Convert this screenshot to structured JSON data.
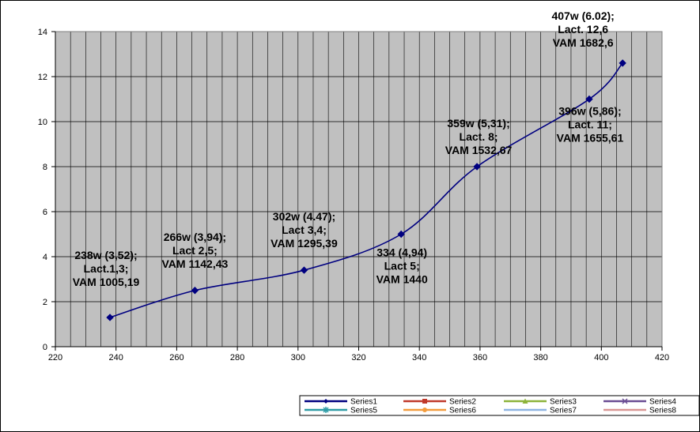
{
  "chart_data": {
    "type": "line",
    "title": "",
    "xlabel": "",
    "ylabel": "",
    "xlim": [
      220,
      420
    ],
    "ylim": [
      0,
      14
    ],
    "x_ticks": [
      "220",
      "240",
      "260",
      "280",
      "300",
      "320",
      "340",
      "360",
      "380",
      "400",
      "420"
    ],
    "y_ticks": [
      "0",
      "2",
      "4",
      "6",
      "8",
      "10",
      "12",
      "14"
    ],
    "grid": true,
    "smooth": true,
    "plot_background": "#c0c0c0",
    "series": [
      {
        "name": "Series1",
        "color": "#000080",
        "marker": "diamond",
        "points": [
          {
            "x": 238,
            "y": 1.3
          },
          {
            "x": 266,
            "y": 2.5
          },
          {
            "x": 302,
            "y": 3.4
          },
          {
            "x": 334,
            "y": 5
          },
          {
            "x": 359,
            "y": 8
          },
          {
            "x": 396,
            "y": 11
          },
          {
            "x": 407,
            "y": 12.6
          }
        ]
      }
    ],
    "data_labels": [
      {
        "lines": [
          "238w (3,52);",
          "Lact.1,3;",
          "VAM 1005,19"
        ]
      },
      {
        "lines": [
          "266w (3,94);",
          "Lact 2,5;",
          "VAM 1142,43"
        ]
      },
      {
        "lines": [
          "302w (4.47);",
          "Lact 3,4;",
          "VAM 1295,39"
        ]
      },
      {
        "lines": [
          "334 (4,94)",
          "Lact 5;",
          "VAM 1440"
        ]
      },
      {
        "lines": [
          "359w (5,31);",
          "Lact. 8;",
          "VAM 1532,67"
        ]
      },
      {
        "lines": [
          "396w (5,86);",
          "Lact. 11;",
          "VAM 1655,61"
        ]
      },
      {
        "lines": [
          "407w (6.02);",
          "Lact. 12,6",
          "VAM 1682,6"
        ]
      }
    ],
    "legend": {
      "placement": "bottom-right",
      "entries": [
        {
          "name": "Series1",
          "color": "#000080",
          "marker": "diamond"
        },
        {
          "name": "Series2",
          "color": "#c0392b",
          "marker": "square"
        },
        {
          "name": "Series3",
          "color": "#8db33a",
          "marker": "triangle"
        },
        {
          "name": "Series4",
          "color": "#6a4c93",
          "marker": "x"
        },
        {
          "name": "Series5",
          "color": "#2e9ca6",
          "marker": "star"
        },
        {
          "name": "Series6",
          "color": "#f39c3c",
          "marker": "circle"
        },
        {
          "name": "Series7",
          "color": "#8eb4e3",
          "marker": "none"
        },
        {
          "name": "Series8",
          "color": "#d99694",
          "marker": "none"
        }
      ]
    }
  }
}
